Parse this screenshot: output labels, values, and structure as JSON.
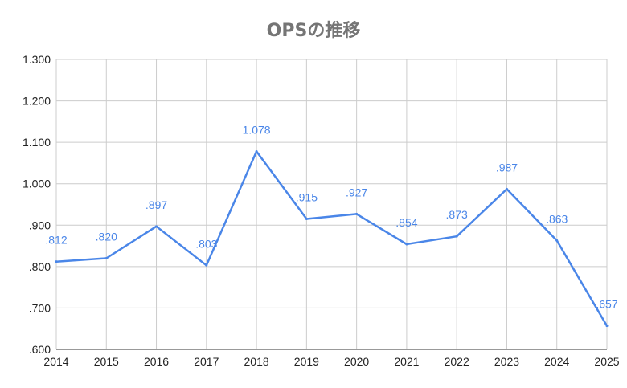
{
  "chart_data": {
    "type": "line",
    "title": "OPSの推移",
    "xlabel": "",
    "ylabel": "",
    "x": [
      "2014",
      "2015",
      "2016",
      "2017",
      "2018",
      "2019",
      "2020",
      "2021",
      "2022",
      "2023",
      "2024",
      "2025"
    ],
    "series": [
      {
        "values": [
          0.812,
          0.82,
          0.897,
          0.803,
          1.078,
          0.915,
          0.927,
          0.854,
          0.873,
          0.987,
          0.863,
          0.657
        ],
        "labels": [
          ".812",
          ".820",
          ".897",
          ".803",
          "1.078",
          ".915",
          ".927",
          ".854",
          ".873",
          ".987",
          ".863",
          ".657"
        ],
        "color": "#4a86e8"
      }
    ],
    "ylim": [
      0.6,
      1.3
    ],
    "yticks": [
      0.6,
      0.7,
      0.8,
      0.9,
      1.0,
      1.1,
      1.2,
      1.3
    ],
    "ytick_labels": [
      ".600",
      ".700",
      ".800",
      ".900",
      "1.000",
      "1.100",
      "1.200",
      "1.300"
    ],
    "grid": true,
    "legend": "none"
  }
}
